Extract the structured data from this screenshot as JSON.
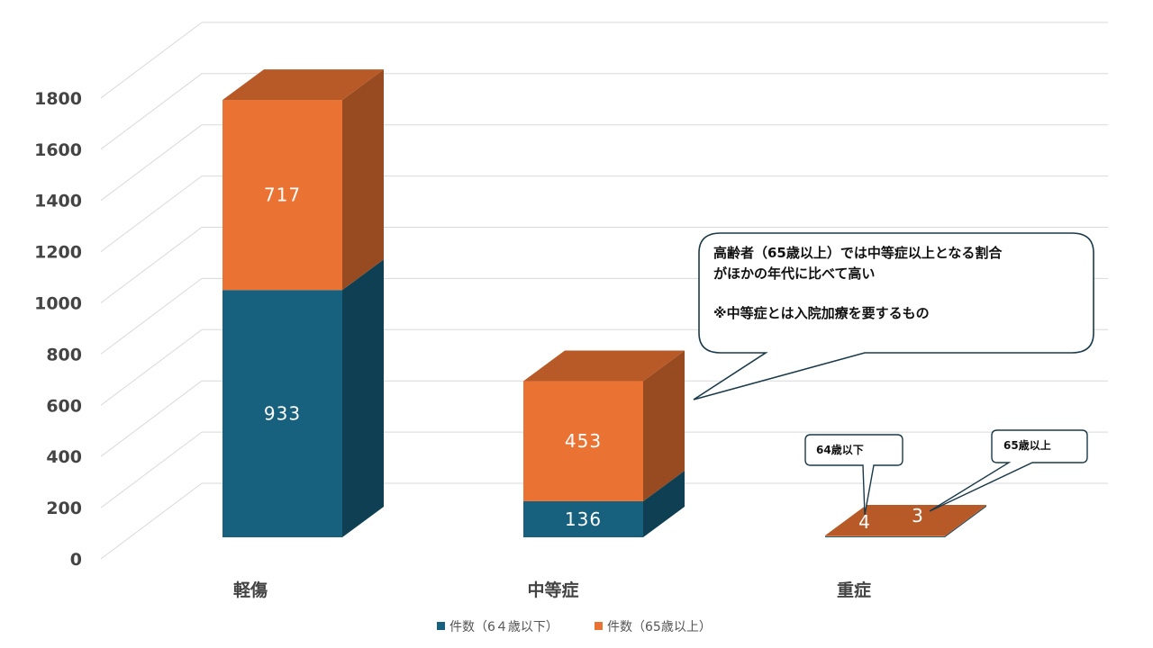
{
  "chart_data": {
    "type": "bar",
    "stacked": true,
    "style": "3d",
    "categories": [
      "軽傷",
      "中等症",
      "重症"
    ],
    "series": [
      {
        "name": "件数（6４歳以下）",
        "values": [
          933,
          136,
          4
        ]
      },
      {
        "name": "件数（65歳以上）",
        "values": [
          717,
          453,
          3
        ]
      }
    ],
    "ylim": [
      0,
      1800
    ],
    "yticks": [
      0,
      200,
      400,
      600,
      800,
      1000,
      1200,
      1400,
      1600,
      1800
    ],
    "grid": true,
    "legend_position": "bottom",
    "annotations": {
      "main_line1": "高齢者（65歳以上）では中等症以上となる割合",
      "main_line2": "がほかの年代に比べて高い",
      "main_line3": "※中等症とは入院加療を要するもの",
      "severe_under": "64歳以下",
      "severe_over": "65歳以上"
    }
  },
  "colors": {
    "series0_front": "#17607e",
    "series0_side": "#0e3f53",
    "series1_front": "#ea7232",
    "series1_side": "#984a20",
    "series1_top": "#b85a28",
    "grid": "#d9d9d9",
    "callout_border": "#1a3a4a"
  }
}
